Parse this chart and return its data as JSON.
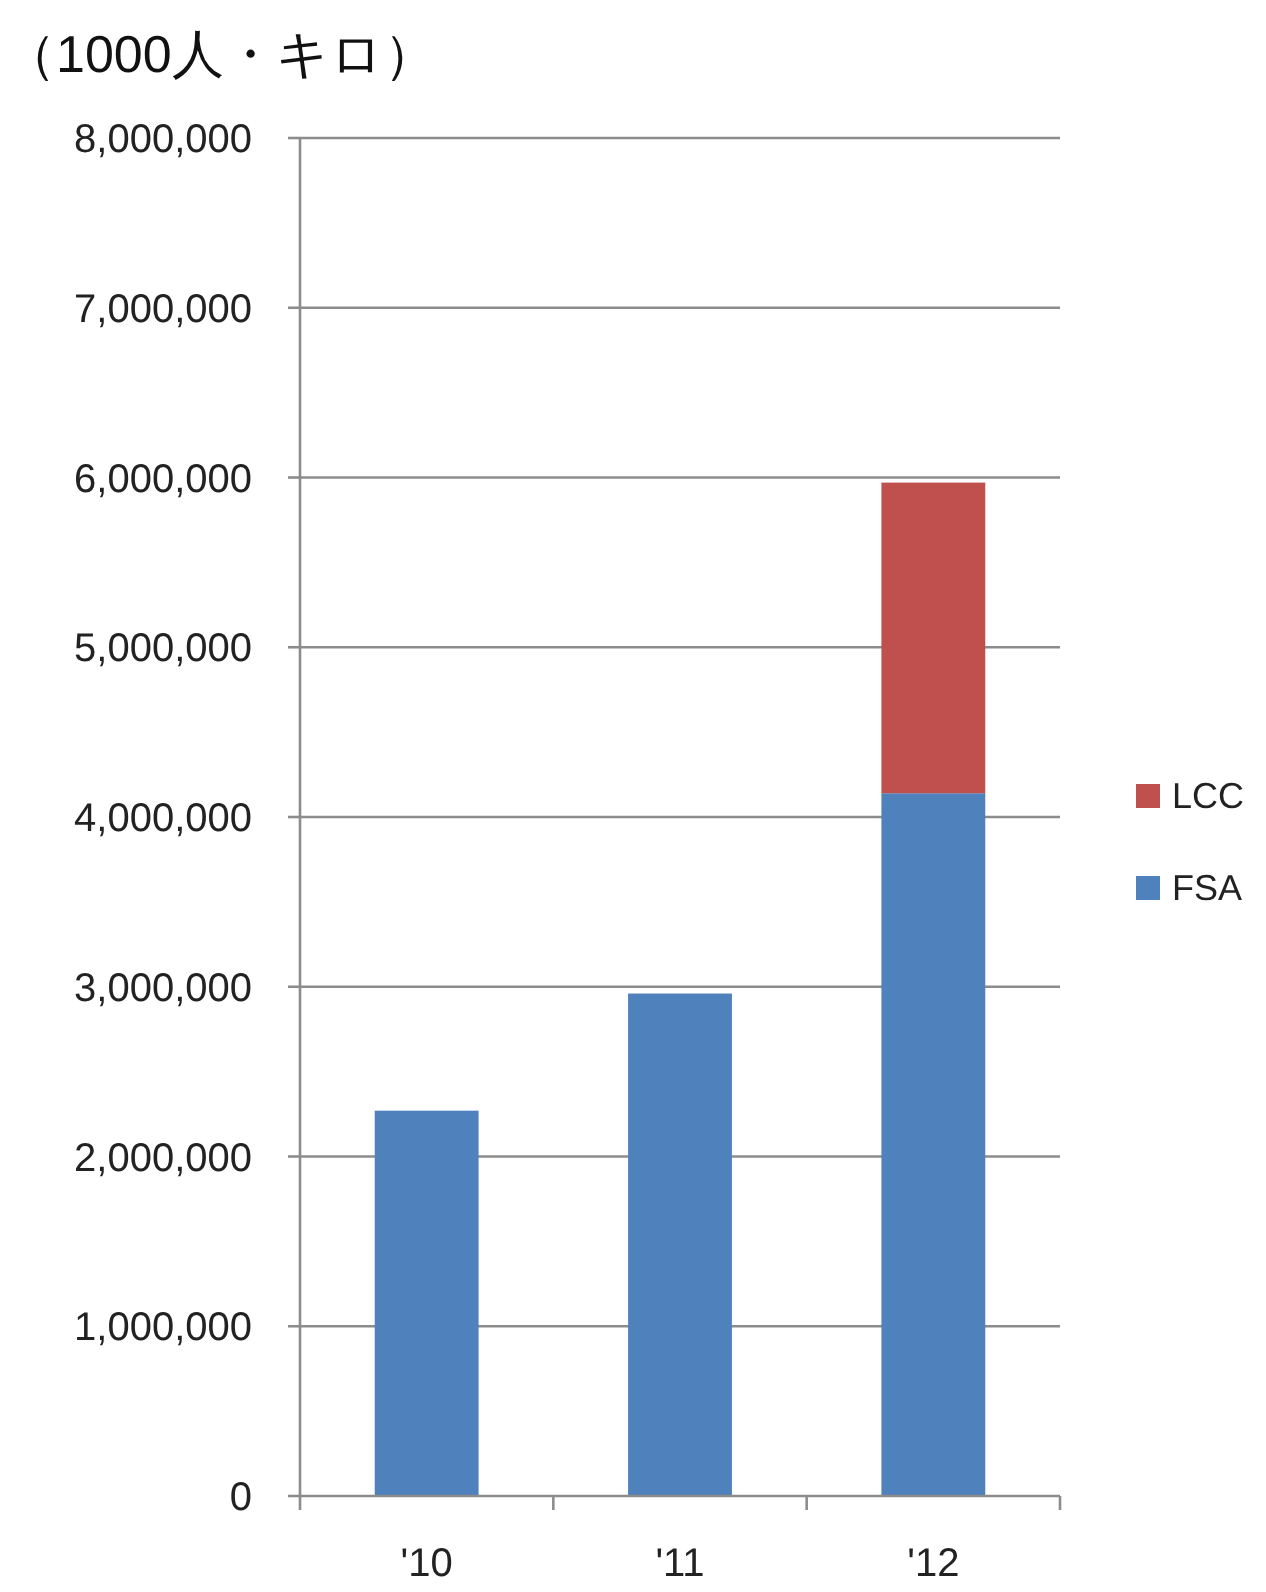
{
  "chart_data": {
    "type": "bar",
    "ylabel": "（1000人・キロ）",
    "categories": [
      "'10",
      "'11",
      "'12"
    ],
    "series": [
      {
        "name": "FSA",
        "color": "#4f81bd",
        "values": [
          2270000,
          2960000,
          4140000
        ]
      },
      {
        "name": "LCC",
        "color": "#c0504d",
        "values": [
          null,
          null,
          1830000
        ]
      }
    ],
    "stacked": true,
    "ylim": [
      0,
      8000000
    ],
    "yticks": [
      {
        "value": 0,
        "label": "0"
      },
      {
        "value": 1000000,
        "label": "1,000,000"
      },
      {
        "value": 2000000,
        "label": "2,000,000"
      },
      {
        "value": 3000000,
        "label": "3,000,000"
      },
      {
        "value": 4000000,
        "label": "4,000,000"
      },
      {
        "value": 5000000,
        "label": "5,000,000"
      },
      {
        "value": 6000000,
        "label": "6,000,000"
      },
      {
        "value": 7000000,
        "label": "7,000,000"
      },
      {
        "value": 8000000,
        "label": "8,000,000"
      }
    ],
    "grid": "y",
    "legend": "right"
  }
}
